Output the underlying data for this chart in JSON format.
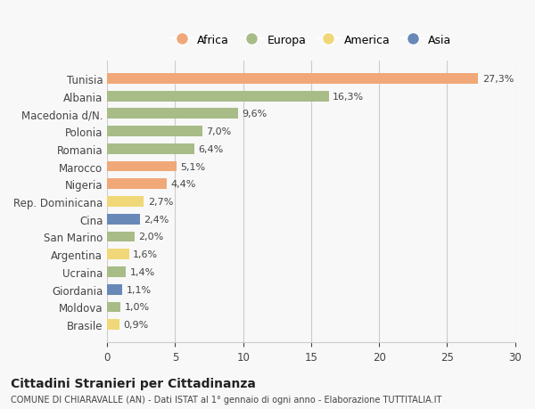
{
  "countries": [
    "Tunisia",
    "Albania",
    "Macedonia d/N.",
    "Polonia",
    "Romania",
    "Marocco",
    "Nigeria",
    "Rep. Dominicana",
    "Cina",
    "San Marino",
    "Argentina",
    "Ucraina",
    "Giordania",
    "Moldova",
    "Brasile"
  ],
  "values": [
    27.3,
    16.3,
    9.6,
    7.0,
    6.4,
    5.1,
    4.4,
    2.7,
    2.4,
    2.0,
    1.6,
    1.4,
    1.1,
    1.0,
    0.9
  ],
  "labels": [
    "27,3%",
    "16,3%",
    "9,6%",
    "7,0%",
    "6,4%",
    "5,1%",
    "4,4%",
    "2,7%",
    "2,4%",
    "2,0%",
    "1,6%",
    "1,4%",
    "1,1%",
    "1,0%",
    "0,9%"
  ],
  "colors": [
    "#f0a878",
    "#a8bc88",
    "#a8bc88",
    "#a8bc88",
    "#a8bc88",
    "#f0a878",
    "#f0a878",
    "#f0d878",
    "#6888b8",
    "#a8bc88",
    "#f0d878",
    "#a8bc88",
    "#6888b8",
    "#a8bc88",
    "#f0d878"
  ],
  "legend_labels": [
    "Africa",
    "Europa",
    "America",
    "Asia"
  ],
  "legend_colors": [
    "#f0a878",
    "#a8bc88",
    "#f0d878",
    "#6888b8"
  ],
  "title": "Cittadini Stranieri per Cittadinanza",
  "subtitle": "COMUNE DI CHIARAVALLE (AN) - Dati ISTAT al 1° gennaio di ogni anno - Elaborazione TUTTITALIA.IT",
  "xlim": [
    0,
    30
  ],
  "xticks": [
    0,
    5,
    10,
    15,
    20,
    25,
    30
  ],
  "background_color": "#f8f8f8",
  "grid_color": "#cccccc"
}
